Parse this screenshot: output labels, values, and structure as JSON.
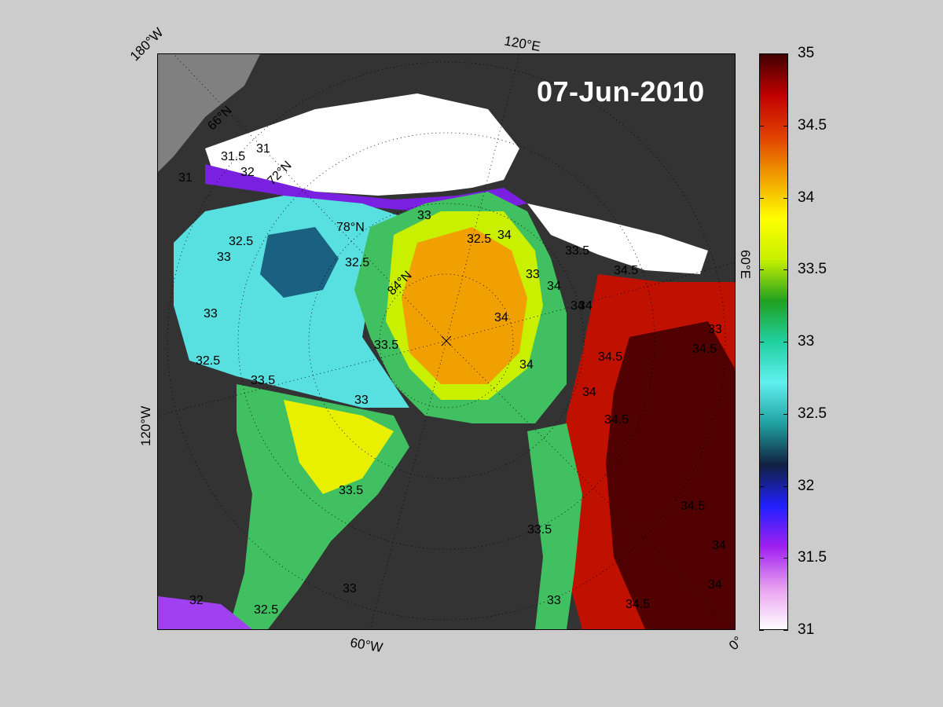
{
  "date": "07-Jun-2010",
  "map_labels": {
    "lon_180w": "180°W",
    "lon_120e": "120°E",
    "lon_60e": "60°E",
    "lon_120w": "120°W",
    "lon_60w": "60°W",
    "lon_0": "0°",
    "lat_66": "66°N",
    "lat_72": "72°N",
    "lat_78": "78°N",
    "lat_84": "84°N"
  },
  "contour_labels": [
    "31.5",
    "31",
    "32",
    "31",
    "32.5",
    "33",
    "32.5",
    "33",
    "78°N",
    "32.5",
    "33",
    "34",
    "33.5",
    "34",
    "33",
    "34",
    "34",
    "34.5",
    "34",
    "34.5",
    "33",
    "34",
    "33.5",
    "33.5",
    "33",
    "34.5",
    "34.5",
    "33",
    "32.5",
    "32",
    "34",
    "34",
    "33.5",
    "32.5",
    "33",
    "33.5",
    "34.5",
    "34.5",
    "34"
  ],
  "colorbar": {
    "ticks": [
      "35",
      "34.5",
      "34",
      "33.5",
      "33",
      "32.5",
      "32",
      "31.5",
      "31"
    ],
    "min": 31,
    "max": 35,
    "colors": [
      "#ffffff",
      "#e8a0f0",
      "#a020f0",
      "#2020ff",
      "#102040",
      "#20a0a0",
      "#60f0f0",
      "#20d0a0",
      "#20a020",
      "#c8f000",
      "#ffff00",
      "#f0a000",
      "#e04000",
      "#c00000",
      "#400000"
    ]
  },
  "map_colors": {
    "land": "#333333",
    "ice": "#ffffff",
    "gray": "#808080",
    "cyan": "#58e0e0",
    "teal": "#2aa0b0",
    "darkteal": "#1a6080",
    "green": "#40c060",
    "yellow": "#e8f000",
    "orange": "#f0a000",
    "darkorange": "#e08000",
    "red": "#c01000",
    "darkred": "#500000",
    "purple": "#a040f0",
    "blue": "#2020e0"
  }
}
